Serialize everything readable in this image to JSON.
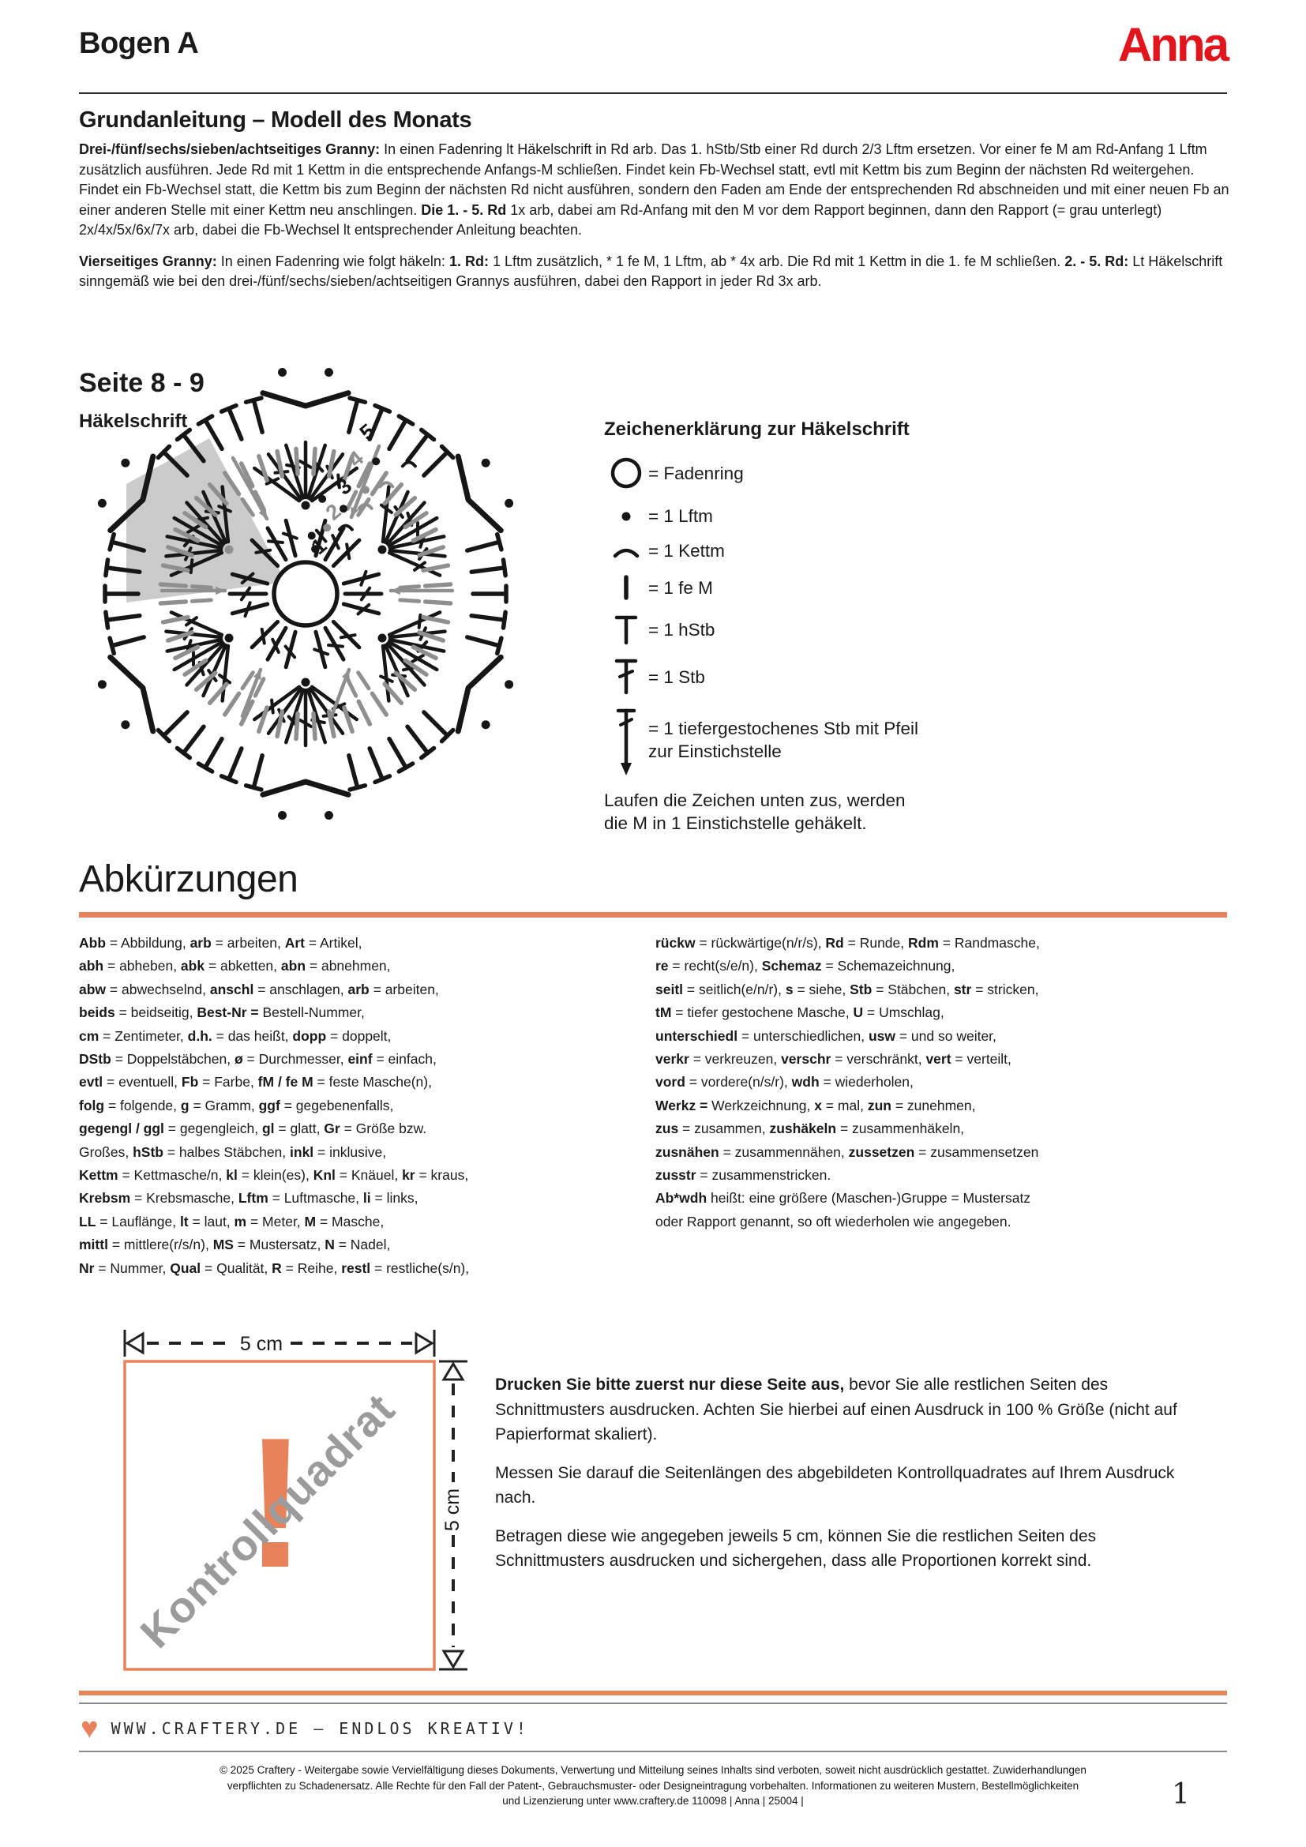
{
  "colors": {
    "accent": "#e8825a",
    "brand_red": "#e2141c",
    "ink": "#1a1a1a",
    "chart_gray": "#8f8f8f",
    "wedge_gray": "#cbcbcb",
    "chart_black": "#161616",
    "watermark_gray": "#9b9b9b"
  },
  "page": {
    "number": "1"
  },
  "header": {
    "sheet_title": "Bogen A",
    "brand": "Anna"
  },
  "intro": {
    "title": "Grundanleitung – Modell des Monats",
    "para1": [
      [
        "b",
        "Drei-/fünf/sechs/sieben/achtseitiges Granny:"
      ],
      [
        "n",
        " In einen Fadenring lt Häkelschrift in Rd arb. Das 1. hStb/Stb einer Rd durch 2/3 Lftm ersetzen. Vor einer fe M am Rd-Anfang 1 Lftm zusätzlich ausführen. Jede Rd mit 1 Kettm in die entsprechende Anfangs-M schließen. Findet kein Fb-Wechsel statt, evtl mit Kettm bis zum Beginn der nächsten Rd weitergehen. Findet ein Fb-Wechsel statt, die Kettm bis zum Beginn der nächsten Rd nicht ausführen, sondern den Faden am Ende der entsprechenden Rd abschneiden und mit einer neuen Fb an einer anderen Stelle mit einer Kettm neu anschlingen. "
      ],
      [
        "b",
        "Die 1. - 5. Rd"
      ],
      [
        "n",
        " 1x arb, dabei am Rd-Anfang mit den M vor dem Rapport beginnen, dann den Rapport (= grau unterlegt) 2x/4x/5x/6x/7x arb, dabei die Fb-Wechsel lt entsprechender Anleitung beachten."
      ]
    ],
    "para2": [
      [
        "b",
        "Vierseitiges Granny:"
      ],
      [
        "n",
        " In einen Fadenring wie folgt häkeln: "
      ],
      [
        "b",
        "1. Rd:"
      ],
      [
        "n",
        " 1 Lftm zusätzlich, * 1 fe M, 1 Lftm, ab * 4x arb. Die Rd mit 1 Kettm in die 1. fe M schließen. "
      ],
      [
        "b",
        "2. - 5. Rd:"
      ],
      [
        "n",
        " Lt Häkelschrift sinngemäß wie bei den drei-/fünf/sechs/sieben/achtseitigen Grannys ausführen, dabei den Rapport in jeder Rd 3x arb."
      ]
    ]
  },
  "chart": {
    "heading": "Seite 8 - 9",
    "subheading": "Häkelschrift",
    "round_labels": [
      "1",
      "2",
      "3",
      "4",
      "5"
    ]
  },
  "legend": {
    "title": "Zeichenerklärung zur Häkelschrift",
    "rows": [
      {
        "icon": "fadenring",
        "label": "= Fadenring"
      },
      {
        "icon": "lftm",
        "label": "= 1 Lftm"
      },
      {
        "icon": "kettm",
        "label": "= 1 Kettm"
      },
      {
        "icon": "fem",
        "label": "= 1 fe M"
      },
      {
        "icon": "hstb",
        "label": "= 1 hStb"
      },
      {
        "icon": "stb",
        "label": "= 1 Stb"
      },
      {
        "icon": "tiefstb",
        "label": "= 1 tiefergestochenes Stb mit Pfeil\nzur Einstichstelle"
      }
    ],
    "note": "Laufen die Zeichen unten zus, werden\ndie M in 1 Einstichstelle gehäkelt."
  },
  "abbreviations": {
    "title": "Abkürzungen",
    "left": [
      [
        [
          "b",
          "Abb"
        ],
        [
          "n",
          " = Abbildung, "
        ],
        [
          "b",
          "arb"
        ],
        [
          "n",
          " = arbeiten, "
        ],
        [
          "b",
          "Art"
        ],
        [
          "n",
          " = Artikel,"
        ]
      ],
      [
        [
          "b",
          "abh"
        ],
        [
          "n",
          " = abheben, "
        ],
        [
          "b",
          "abk"
        ],
        [
          "n",
          " = abketten, "
        ],
        [
          "b",
          "abn"
        ],
        [
          "n",
          " = abnehmen,"
        ]
      ],
      [
        [
          "b",
          "abw"
        ],
        [
          "n",
          " = abwechselnd, "
        ],
        [
          "b",
          "anschl"
        ],
        [
          "n",
          " = anschlagen, "
        ],
        [
          "b",
          "arb"
        ],
        [
          "n",
          " = arbeiten,"
        ]
      ],
      [
        [
          "b",
          "beids"
        ],
        [
          "n",
          " = beidseitig, "
        ],
        [
          "b",
          "Best-Nr ="
        ],
        [
          "n",
          " Bestell-Nummer,"
        ]
      ],
      [
        [
          "b",
          "cm"
        ],
        [
          "n",
          " = Zentimeter, "
        ],
        [
          "b",
          "d.h."
        ],
        [
          "n",
          " = das heißt, "
        ],
        [
          "b",
          "dopp"
        ],
        [
          "n",
          " = doppelt,"
        ]
      ],
      [
        [
          "b",
          "DStb"
        ],
        [
          "n",
          " = Doppelstäbchen, "
        ],
        [
          "b",
          "ø"
        ],
        [
          "n",
          " = Durchmesser, "
        ],
        [
          "b",
          "einf"
        ],
        [
          "n",
          " = einfach,"
        ]
      ],
      [
        [
          "b",
          "evtl"
        ],
        [
          "n",
          " = eventuell, "
        ],
        [
          "b",
          "Fb"
        ],
        [
          "n",
          " = Farbe, "
        ],
        [
          "b",
          "fM / fe M"
        ],
        [
          "n",
          " = feste Masche(n),"
        ]
      ],
      [
        [
          "b",
          "folg"
        ],
        [
          "n",
          " = folgende, "
        ],
        [
          "b",
          "g"
        ],
        [
          "n",
          " = Gramm, "
        ],
        [
          "b",
          "ggf"
        ],
        [
          "n",
          " = gegebenenfalls,"
        ]
      ],
      [
        [
          "b",
          "gegengl / ggl"
        ],
        [
          "n",
          " = gegengleich, "
        ],
        [
          "b",
          "gl"
        ],
        [
          "n",
          " = glatt, "
        ],
        [
          "b",
          "Gr"
        ],
        [
          "n",
          " = Größe bzw."
        ]
      ],
      [
        [
          "n",
          "Großes, "
        ],
        [
          "b",
          "hStb"
        ],
        [
          "n",
          " = halbes Stäbchen, "
        ],
        [
          "b",
          "inkl"
        ],
        [
          "n",
          " = inklusive,"
        ]
      ],
      [
        [
          "b",
          "Kettm"
        ],
        [
          "n",
          " = Kettmasche/n, "
        ],
        [
          "b",
          "kl"
        ],
        [
          "n",
          " = klein(es), "
        ],
        [
          "b",
          "Knl"
        ],
        [
          "n",
          " = Knäuel, "
        ],
        [
          "b",
          "kr"
        ],
        [
          "n",
          " = kraus,"
        ]
      ],
      [
        [
          "b",
          "Krebsm"
        ],
        [
          "n",
          " = Krebsmasche, "
        ],
        [
          "b",
          "Lftm"
        ],
        [
          "n",
          " = Luftmasche, "
        ],
        [
          "b",
          "li"
        ],
        [
          "n",
          " = links,"
        ]
      ],
      [
        [
          "b",
          "LL"
        ],
        [
          "n",
          " = Lauflänge, "
        ],
        [
          "b",
          "lt"
        ],
        [
          "n",
          " = laut, "
        ],
        [
          "b",
          "m"
        ],
        [
          "n",
          " = Meter, "
        ],
        [
          "b",
          "M"
        ],
        [
          "n",
          " = Masche,"
        ]
      ],
      [
        [
          "b",
          "mittl"
        ],
        [
          "n",
          " = mittlere(r/s/n), "
        ],
        [
          "b",
          "MS"
        ],
        [
          "n",
          " = Mustersatz, "
        ],
        [
          "b",
          "N"
        ],
        [
          "n",
          " = Nadel,"
        ]
      ],
      [
        [
          "b",
          "Nr"
        ],
        [
          "n",
          " = Nummer, "
        ],
        [
          "b",
          "Qual"
        ],
        [
          "n",
          " = Qualität, "
        ],
        [
          "b",
          "R"
        ],
        [
          "n",
          " = Reihe, "
        ],
        [
          "b",
          "restl"
        ],
        [
          "n",
          " = restliche(s/n),"
        ]
      ]
    ],
    "right": [
      [
        [
          "b",
          "rückw"
        ],
        [
          "n",
          " = rückwärtige(n/r/s), "
        ],
        [
          "b",
          "Rd"
        ],
        [
          "n",
          " = Runde, "
        ],
        [
          "b",
          "Rdm"
        ],
        [
          "n",
          " = Randmasche,"
        ]
      ],
      [
        [
          "b",
          "re"
        ],
        [
          "n",
          " = recht(s/e/n), "
        ],
        [
          "b",
          "Schemaz"
        ],
        [
          "n",
          " = Schemazeichnung,"
        ]
      ],
      [
        [
          "b",
          "seitl"
        ],
        [
          "n",
          " = seitlich(e/n/r), "
        ],
        [
          "b",
          "s"
        ],
        [
          "n",
          " = siehe, "
        ],
        [
          "b",
          "Stb"
        ],
        [
          "n",
          " = Stäbchen, "
        ],
        [
          "b",
          "str"
        ],
        [
          "n",
          " = stricken,"
        ]
      ],
      [
        [
          "b",
          "tM"
        ],
        [
          "n",
          " = tiefer gestochene Masche, "
        ],
        [
          "b",
          "U"
        ],
        [
          "n",
          " = Umschlag,"
        ]
      ],
      [
        [
          "b",
          "unterschiedl"
        ],
        [
          "n",
          " = unterschiedlichen, "
        ],
        [
          "b",
          "usw"
        ],
        [
          "n",
          " = und so weiter,"
        ]
      ],
      [
        [
          "b",
          "verkr"
        ],
        [
          "n",
          " = verkreuzen, "
        ],
        [
          "b",
          "verschr"
        ],
        [
          "n",
          " = verschränkt, "
        ],
        [
          "b",
          "vert"
        ],
        [
          "n",
          " = verteilt,"
        ]
      ],
      [
        [
          "b",
          "vord"
        ],
        [
          "n",
          " = vordere(n/s/r), "
        ],
        [
          "b",
          "wdh"
        ],
        [
          "n",
          " = wiederholen,"
        ]
      ],
      [
        [
          "b",
          "Werkz ="
        ],
        [
          "n",
          " Werkzeichnung, "
        ],
        [
          "b",
          "x"
        ],
        [
          "n",
          " = mal, "
        ],
        [
          "b",
          "zun"
        ],
        [
          "n",
          " = zunehmen,"
        ]
      ],
      [
        [
          "b",
          "zus"
        ],
        [
          "n",
          " = zusammen, "
        ],
        [
          "b",
          "zushäkeln"
        ],
        [
          "n",
          " = zusammenhäkeln,"
        ]
      ],
      [
        [
          "b",
          "zusnähen"
        ],
        [
          "n",
          " = zusammennähen, "
        ],
        [
          "b",
          "zussetzen"
        ],
        [
          "n",
          " = zusammensetzen"
        ]
      ],
      [
        [
          "b",
          "zusstr"
        ],
        [
          "n",
          " = zusammenstricken."
        ]
      ],
      [
        [
          "b",
          "Ab*wdh"
        ],
        [
          "n",
          " heißt: eine größere (Maschen-)Gruppe = Mustersatz"
        ]
      ],
      [
        [
          "n",
          "oder Rapport genannt, so oft wiederholen wie angegeben."
        ]
      ]
    ]
  },
  "kontroll": {
    "dim_top": "5 cm",
    "dim_right": "5 cm",
    "watermark": "Kontrollquadrat",
    "mark": "!",
    "para1": [
      [
        "b",
        "Drucken Sie bitte zuerst nur diese Seite aus,"
      ],
      [
        "n",
        " bevor Sie alle restlichen Seiten des Schnittmusters ausdrucken. Achten Sie hierbei auf einen Ausdruck in 100 % Größe (nicht auf Papierformat skaliert)."
      ]
    ],
    "para2": [
      [
        "n",
        "Messen Sie darauf die Seitenlängen des abgebildeten Kontrollquadrates auf Ihrem Ausdruck nach."
      ]
    ],
    "para3": [
      [
        "n",
        "Betragen diese wie angegeben jeweils 5 cm, können Sie die restlichen Seiten des Schnittmusters ausdrucken und sichergehen, dass alle Proportionen korrekt sind."
      ]
    ]
  },
  "footer": {
    "heart": "♥",
    "tagline": "www.craftery.de – Endlos kreativ!",
    "copyright": [
      "© 2025 Craftery - Weitergabe sowie Vervielfältigung dieses Dokuments, Verwertung und Mitteilung seines Inhalts sind verboten, soweit nicht ausdrücklich gestattet. Zuwiderhandlungen",
      "verpflichten zu Schadenersatz. Alle Rechte für den Fall der Patent-, Gebrauchsmuster- oder Designeintragung vorbehalten. Informationen zu weiteren Mustern, Bestellmöglichkeiten",
      "und Lizenzierung unter www.craftery.de  110098 | Anna | 25004 |"
    ]
  }
}
